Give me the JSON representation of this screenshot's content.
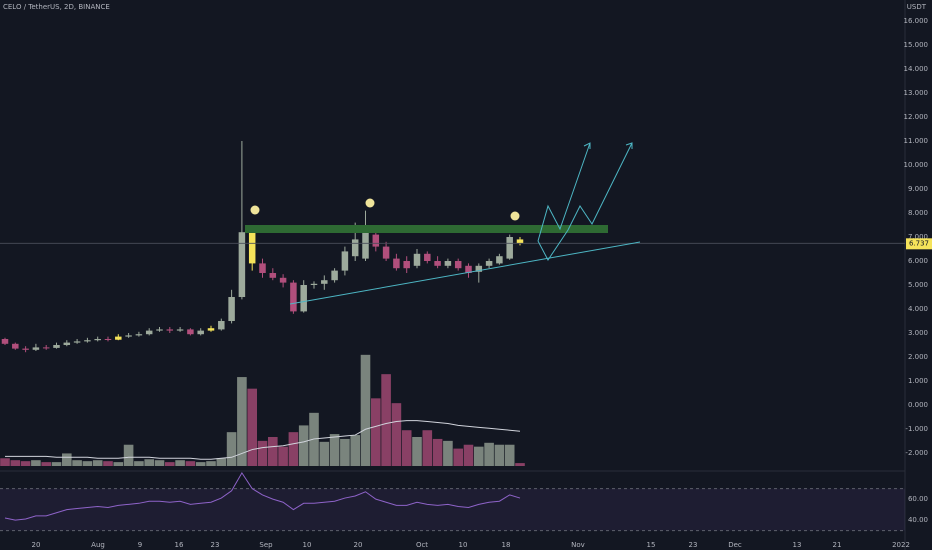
{
  "chart_data": {
    "type": "candlestick",
    "title": "CELO / TetherUS, 2D, BINANCE",
    "currency": "USDT",
    "x_labels": [
      "20",
      "Aug",
      "9",
      "16",
      "23",
      "Sep",
      "10",
      "20",
      "Oct",
      "10",
      "18",
      "Nov",
      "15",
      "23",
      "Dec",
      "13",
      "21",
      "2022"
    ],
    "open": [
      2.75,
      2.55,
      2.35,
      2.3,
      2.4,
      2.38,
      2.5,
      2.6,
      2.65,
      2.7,
      2.75,
      2.72,
      2.85,
      2.9,
      2.95,
      3.1,
      3.15,
      3.1,
      3.15,
      2.95,
      3.1,
      3.15,
      3.5,
      4.5,
      7.2,
      5.9,
      5.5,
      5.3,
      5.1,
      3.9,
      5.0,
      5.05,
      5.2,
      5.6,
      6.2,
      6.1,
      7.1,
      6.6,
      6.1,
      6.0,
      5.8,
      6.3,
      6.0,
      5.8,
      6.0,
      5.8,
      5.55,
      5.8,
      5.9,
      6.1,
      6.9
    ],
    "high": [
      2.8,
      2.6,
      2.45,
      2.55,
      2.5,
      2.6,
      2.7,
      2.75,
      2.8,
      2.85,
      2.85,
      2.95,
      3.0,
      3.05,
      3.2,
      3.25,
      3.25,
      3.25,
      3.2,
      3.2,
      3.3,
      3.6,
      4.8,
      11.0,
      7.35,
      6.1,
      5.7,
      5.45,
      5.2,
      5.2,
      5.15,
      5.4,
      5.7,
      6.6,
      7.6,
      8.1,
      7.2,
      6.8,
      6.3,
      6.2,
      6.5,
      6.4,
      6.2,
      6.1,
      6.1,
      5.9,
      5.9,
      6.1,
      6.3,
      7.1,
      7.0
    ],
    "low": [
      2.5,
      2.3,
      2.2,
      2.25,
      2.3,
      2.35,
      2.45,
      2.55,
      2.6,
      2.65,
      2.65,
      2.7,
      2.8,
      2.85,
      2.9,
      3.05,
      3.0,
      3.05,
      2.9,
      2.9,
      3.05,
      3.1,
      3.4,
      4.4,
      5.6,
      5.3,
      5.2,
      4.9,
      3.8,
      3.85,
      4.85,
      4.8,
      5.1,
      5.4,
      6.0,
      6.0,
      6.4,
      6.0,
      5.6,
      5.5,
      5.7,
      5.9,
      5.7,
      5.7,
      5.6,
      5.3,
      5.1,
      5.7,
      5.85,
      6.05,
      6.65
    ],
    "close": [
      2.55,
      2.35,
      2.3,
      2.4,
      2.38,
      2.5,
      2.6,
      2.65,
      2.7,
      2.75,
      2.72,
      2.85,
      2.9,
      2.95,
      3.1,
      3.15,
      3.1,
      3.15,
      2.95,
      3.1,
      3.2,
      3.5,
      4.5,
      7.2,
      5.9,
      5.5,
      5.3,
      5.1,
      3.9,
      5.0,
      5.05,
      5.2,
      5.6,
      6.4,
      6.9,
      7.3,
      6.6,
      6.1,
      5.7,
      5.7,
      6.3,
      6.0,
      5.8,
      6.0,
      5.7,
      5.5,
      5.8,
      6.0,
      6.2,
      7.0,
      6.737
    ],
    "highlight": [
      11,
      20,
      24,
      50
    ],
    "up_color": "#9daa9c",
    "down_color": "#b14f7c",
    "highlight_color": "#f5e35a",
    "ylim": [
      -2.708,
      16.875
    ],
    "yticks": [
      {
        "value": 16,
        "label": "16.000"
      },
      {
        "value": 15,
        "label": "15.000"
      },
      {
        "value": 14,
        "label": "14.000"
      },
      {
        "value": 13,
        "label": "13.000"
      },
      {
        "value": 12,
        "label": "12.000"
      },
      {
        "value": 11,
        "label": "11.000"
      },
      {
        "value": 10,
        "label": "10.000"
      },
      {
        "value": 9,
        "label": "9.000"
      },
      {
        "value": 8,
        "label": "8.000"
      },
      {
        "value": 7,
        "label": "7.000"
      },
      {
        "value": 6,
        "label": "6.000"
      },
      {
        "value": 5,
        "label": "5.000"
      },
      {
        "value": 4,
        "label": "4.000"
      },
      {
        "value": 3,
        "label": "3.000"
      },
      {
        "value": 2,
        "label": "2.000"
      },
      {
        "value": 1,
        "label": "1.000"
      },
      {
        "value": 0,
        "label": "0.000"
      },
      {
        "value": -1,
        "label": "-1.000"
      },
      {
        "value": -2,
        "label": "-2.000"
      }
    ],
    "volume": [
      8,
      6,
      5,
      6,
      4,
      4,
      13,
      6,
      5,
      6,
      5,
      4,
      22,
      5,
      7,
      6,
      4,
      6,
      5,
      4,
      5,
      8,
      35,
      92,
      80,
      26,
      30,
      20,
      35,
      42,
      55,
      25,
      33,
      28,
      32,
      115,
      70,
      95,
      65,
      37,
      30,
      37,
      28,
      26,
      18,
      22,
      20,
      24,
      22,
      22,
      3
    ],
    "volume_ma": [
      10,
      10,
      10,
      10,
      10,
      9,
      9,
      9,
      9,
      8,
      8,
      8,
      9,
      9,
      9,
      8,
      8,
      8,
      8,
      7,
      7,
      8,
      9,
      13,
      17,
      19,
      20,
      21,
      23,
      25,
      28,
      29,
      30,
      31,
      32,
      38,
      41,
      44,
      46,
      47,
      47,
      46,
      45,
      44,
      42,
      41,
      40,
      39,
      38,
      37,
      36
    ],
    "vlim": [
      0,
      120
    ],
    "rsi": [
      42,
      40,
      41,
      44,
      44,
      47,
      50,
      51,
      52,
      53,
      52,
      54,
      55,
      56,
      58,
      58,
      57,
      58,
      55,
      56,
      57,
      61,
      68,
      85,
      70,
      64,
      60,
      57,
      50,
      56,
      56,
      57,
      58,
      61,
      63,
      67,
      60,
      57,
      54,
      54,
      57,
      55,
      54,
      55,
      53,
      52,
      55,
      57,
      58,
      64,
      61
    ],
    "rsi_color": "#8e63c9",
    "rsi_band": [
      30,
      70
    ],
    "rlim": [
      21,
      83
    ],
    "rticks": [
      {
        "value": 60,
        "label": "60.00"
      },
      {
        "value": 40,
        "label": "40.00"
      }
    ]
  }
}
